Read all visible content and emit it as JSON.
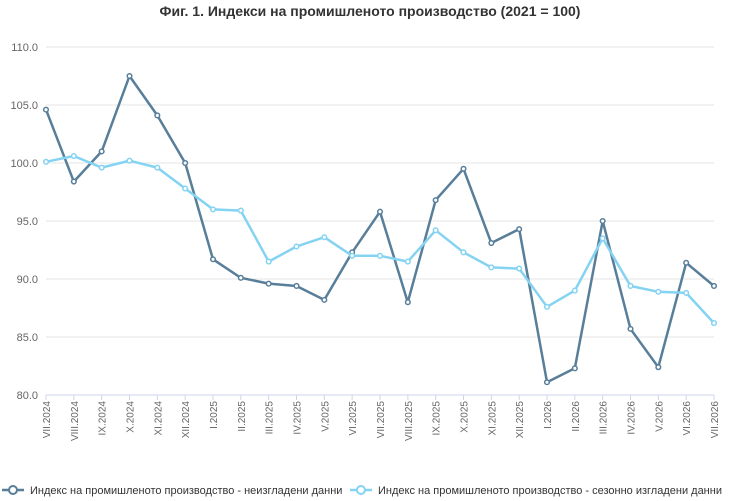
{
  "chart_data": {
    "type": "line",
    "title": "Фиг. 1. Индекси на промишленото производство (2021 = 100)",
    "categories": [
      "VII.2024",
      "VIII.2024",
      "IX.2024",
      "X.2024",
      "XI.2024",
      "XII.2024",
      "I.2025",
      "II.2025",
      "III.2025",
      "IV.2025",
      "V.2025",
      "VI.2025",
      "VII.2025",
      "VIII.2025",
      "IX.2025",
      "X.2025",
      "XI.2025",
      "XII.2025",
      "I.2026",
      "II.2026",
      "III.2026",
      "IV.2026",
      "V.2026",
      "VI.2026",
      "VII.2026"
    ],
    "yticks": [
      "80.0",
      "85.0",
      "90.0",
      "95.0",
      "100.0",
      "105.0",
      "110.0"
    ],
    "ylim": [
      80,
      110
    ],
    "grid": true,
    "legend_position": "bottom",
    "series": [
      {
        "name": "Индекс на промишленото производство - неизгладени данни",
        "color": "#587e99",
        "values": [
          104.6,
          98.4,
          101.0,
          107.5,
          104.1,
          100.0,
          91.7,
          90.1,
          89.6,
          89.4,
          88.2,
          92.3,
          95.8,
          88.0,
          96.8,
          99.5,
          93.1,
          94.3,
          81.1,
          82.3,
          95.0,
          85.7,
          82.4,
          91.4,
          89.4
        ]
      },
      {
        "name": "Индекс на промишленото производство - сезонно изгладени данни",
        "color": "#85d3f2",
        "values": [
          100.1,
          100.6,
          99.6,
          100.2,
          99.6,
          97.8,
          96.0,
          95.9,
          91.5,
          92.8,
          93.6,
          92.0,
          92.0,
          91.5,
          94.2,
          92.3,
          91.0,
          90.9,
          87.6,
          89.0,
          93.5,
          89.4,
          88.9,
          88.8,
          86.2
        ]
      }
    ]
  }
}
